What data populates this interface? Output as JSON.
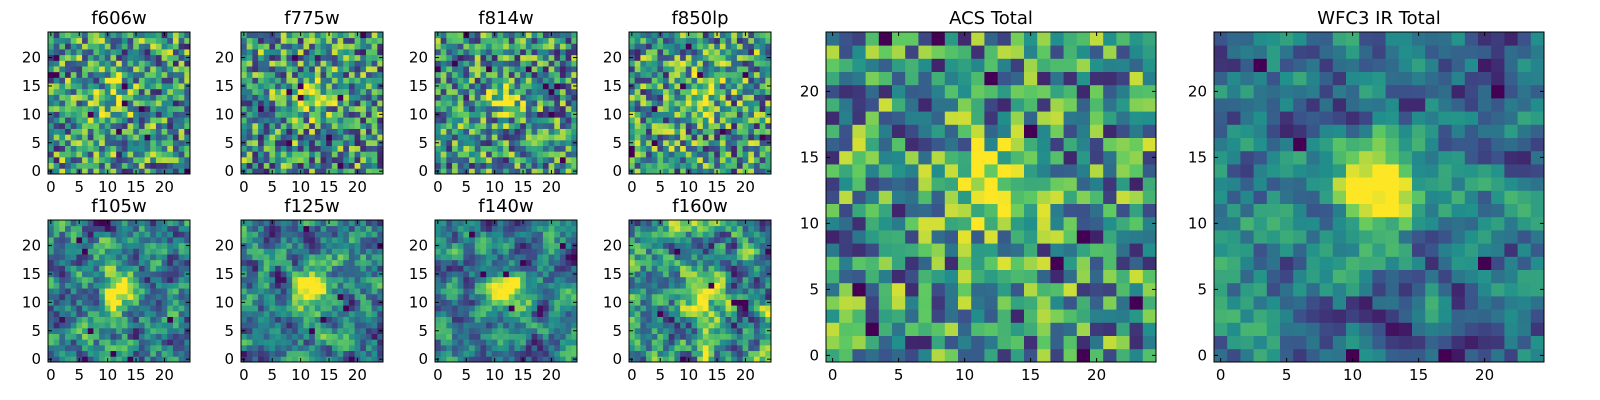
{
  "chart_data": [
    {
      "type": "heatmap",
      "title": "f606w",
      "colormap": "viridis",
      "grid_size": 25,
      "xticks": [
        0,
        5,
        10,
        15,
        20
      ],
      "yticks": [
        0,
        5,
        10,
        15,
        20
      ],
      "seed": 101,
      "scale": 1,
      "blob": 0.3,
      "blob_center": [
        12,
        13
      ]
    },
    {
      "type": "heatmap",
      "title": "f775w",
      "colormap": "viridis",
      "grid_size": 25,
      "xticks": [
        0,
        5,
        10,
        15,
        20
      ],
      "yticks": [
        0,
        5,
        10,
        15,
        20
      ],
      "seed": 202,
      "scale": 1,
      "blob": 0.35,
      "blob_center": [
        12,
        13
      ]
    },
    {
      "type": "heatmap",
      "title": "f814w",
      "colormap": "viridis",
      "grid_size": 25,
      "xticks": [
        0,
        5,
        10,
        15,
        20
      ],
      "yticks": [
        0,
        5,
        10,
        15,
        20
      ],
      "seed": 303,
      "scale": 1,
      "blob": 0.35,
      "blob_center": [
        12,
        13
      ]
    },
    {
      "type": "heatmap",
      "title": "f850lp",
      "colormap": "viridis",
      "grid_size": 25,
      "xticks": [
        0,
        5,
        10,
        15,
        20
      ],
      "yticks": [
        0,
        5,
        10,
        15,
        20
      ],
      "seed": 404,
      "scale": 1,
      "blob": 0.3,
      "blob_center": [
        12,
        13
      ]
    },
    {
      "type": "heatmap",
      "title": "f105w",
      "colormap": "viridis",
      "grid_size": 25,
      "xticks": [
        0,
        5,
        10,
        15,
        20
      ],
      "yticks": [
        0,
        5,
        10,
        15,
        20
      ],
      "seed": 505,
      "scale": 2,
      "blob": 0.4,
      "blob_center": [
        12,
        12
      ]
    },
    {
      "type": "heatmap",
      "title": "f125w",
      "colormap": "viridis",
      "grid_size": 25,
      "xticks": [
        0,
        5,
        10,
        15,
        20
      ],
      "yticks": [
        0,
        5,
        10,
        15,
        20
      ],
      "seed": 606,
      "scale": 2,
      "blob": 0.4,
      "blob_center": [
        12,
        12
      ]
    },
    {
      "type": "heatmap",
      "title": "f140w",
      "colormap": "viridis",
      "grid_size": 25,
      "xticks": [
        0,
        5,
        10,
        15,
        20
      ],
      "yticks": [
        0,
        5,
        10,
        15,
        20
      ],
      "seed": 707,
      "scale": 2,
      "blob": 0.4,
      "blob_center": [
        12,
        12
      ]
    },
    {
      "type": "heatmap",
      "title": "f160w",
      "colormap": "viridis",
      "grid_size": 25,
      "xticks": [
        0,
        5,
        10,
        15,
        20
      ],
      "yticks": [
        0,
        5,
        10,
        15,
        20
      ],
      "seed": 808,
      "scale": 2,
      "blob": 0.4,
      "blob_center": [
        12,
        12
      ]
    },
    {
      "type": "heatmap",
      "title": "ACS Total",
      "colormap": "viridis",
      "grid_size": 25,
      "xticks": [
        0,
        5,
        10,
        15,
        20
      ],
      "yticks": [
        0,
        5,
        10,
        15,
        20
      ],
      "seed": 909,
      "scale": 1,
      "blob": 0.45,
      "blob_center": [
        12,
        13
      ]
    },
    {
      "type": "heatmap",
      "title": "WFC3 IR Total",
      "colormap": "viridis",
      "grid_size": 25,
      "xticks": [
        0,
        5,
        10,
        15,
        20
      ],
      "yticks": [
        0,
        5,
        10,
        15,
        20
      ],
      "seed": 1111,
      "scale": 2,
      "blob": 0.55,
      "blob_center": [
        12,
        13
      ]
    }
  ]
}
